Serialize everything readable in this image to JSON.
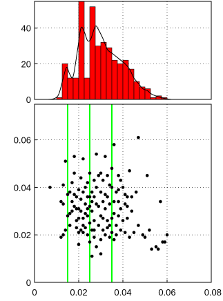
{
  "chart_data": [
    {
      "type": "bar",
      "panel": "histogram",
      "bar_color": "#ff0000",
      "bar_edge_color": "#000000",
      "curve_color": "#000000",
      "grid": true,
      "grid_style": "dotted",
      "xlim": [
        0,
        0.08
      ],
      "ylim": [
        0,
        55
      ],
      "yticks": [
        0,
        20,
        40
      ],
      "ytick_labels": [
        "0",
        "20",
        "40"
      ],
      "bins": [
        {
          "x0": 0.01,
          "x1": 0.0125,
          "count": 1
        },
        {
          "x0": 0.0125,
          "x1": 0.015,
          "count": 20
        },
        {
          "x0": 0.015,
          "x1": 0.0175,
          "count": 12
        },
        {
          "x0": 0.0175,
          "x1": 0.02,
          "count": 12
        },
        {
          "x0": 0.02,
          "x1": 0.0225,
          "count": 56
        },
        {
          "x0": 0.0225,
          "x1": 0.025,
          "count": 12
        },
        {
          "x0": 0.025,
          "x1": 0.0275,
          "count": 52
        },
        {
          "x0": 0.0275,
          "x1": 0.03,
          "count": 30
        },
        {
          "x0": 0.03,
          "x1": 0.0325,
          "count": 32
        },
        {
          "x0": 0.0325,
          "x1": 0.035,
          "count": 29
        },
        {
          "x0": 0.035,
          "x1": 0.0375,
          "count": 22
        },
        {
          "x0": 0.0375,
          "x1": 0.04,
          "count": 20
        },
        {
          "x0": 0.04,
          "x1": 0.0425,
          "count": 22
        },
        {
          "x0": 0.0425,
          "x1": 0.045,
          "count": 17
        },
        {
          "x0": 0.045,
          "x1": 0.0475,
          "count": 10
        },
        {
          "x0": 0.0475,
          "x1": 0.05,
          "count": 7
        },
        {
          "x0": 0.05,
          "x1": 0.0525,
          "count": 6
        },
        {
          "x0": 0.0525,
          "x1": 0.055,
          "count": 1
        },
        {
          "x0": 0.055,
          "x1": 0.0575,
          "count": 2
        },
        {
          "x0": 0.0575,
          "x1": 0.06,
          "count": 1
        }
      ],
      "density_curve": [
        [
          0.006,
          0
        ],
        [
          0.009,
          0.5
        ],
        [
          0.011,
          3
        ],
        [
          0.013,
          12
        ],
        [
          0.0145,
          18
        ],
        [
          0.016,
          14
        ],
        [
          0.0175,
          13
        ],
        [
          0.0195,
          28
        ],
        [
          0.021,
          40
        ],
        [
          0.0225,
          38
        ],
        [
          0.024,
          33
        ],
        [
          0.0255,
          34
        ],
        [
          0.0275,
          41
        ],
        [
          0.029,
          39
        ],
        [
          0.031,
          34
        ],
        [
          0.033,
          28
        ],
        [
          0.035,
          26
        ],
        [
          0.037,
          24
        ],
        [
          0.039,
          22
        ],
        [
          0.041,
          20
        ],
        [
          0.043,
          17
        ],
        [
          0.045,
          12
        ],
        [
          0.047,
          9
        ],
        [
          0.049,
          6
        ],
        [
          0.051,
          5
        ],
        [
          0.053,
          3
        ],
        [
          0.056,
          1.5
        ],
        [
          0.059,
          0.5
        ],
        [
          0.062,
          0
        ]
      ]
    },
    {
      "type": "scatter",
      "panel": "scatter",
      "point_color": "#000000",
      "vline_color": "#00ff00",
      "grid": true,
      "grid_style": "dotted",
      "xlim": [
        0,
        0.08
      ],
      "ylim": [
        0,
        0.075
      ],
      "xticks": [
        0,
        0.02,
        0.04,
        0.06,
        0.08
      ],
      "xtick_labels": [
        "0",
        "0.02",
        "0.04",
        "0.06",
        "0.08"
      ],
      "yticks": [
        0,
        0.02,
        0.04,
        0.06
      ],
      "ytick_labels": [
        "0",
        "0.02",
        "0.04",
        "0.06"
      ],
      "vlines": [
        0.015,
        0.025,
        0.035
      ],
      "points": [
        [
          0.007,
          0.04
        ],
        [
          0.012,
          0.034
        ],
        [
          0.013,
          0.033
        ],
        [
          0.013,
          0.041
        ],
        [
          0.012,
          0.019
        ],
        [
          0.013,
          0.02
        ],
        [
          0.014,
          0.022
        ],
        [
          0.014,
          0.051
        ],
        [
          0.015,
          0.028
        ],
        [
          0.015,
          0.037
        ],
        [
          0.016,
          0.038
        ],
        [
          0.016,
          0.029
        ],
        [
          0.016,
          0.024
        ],
        [
          0.017,
          0.034
        ],
        [
          0.017,
          0.042
        ],
        [
          0.018,
          0.046
        ],
        [
          0.018,
          0.053
        ],
        [
          0.018,
          0.032
        ],
        [
          0.019,
          0.031
        ],
        [
          0.019,
          0.036
        ],
        [
          0.019,
          0.026
        ],
        [
          0.02,
          0.039
        ],
        [
          0.02,
          0.031
        ],
        [
          0.02,
          0.021
        ],
        [
          0.02,
          0.016
        ],
        [
          0.021,
          0.044
        ],
        [
          0.021,
          0.03
        ],
        [
          0.021,
          0.022
        ],
        [
          0.022,
          0.052
        ],
        [
          0.022,
          0.027
        ],
        [
          0.022,
          0.024
        ],
        [
          0.022,
          0.021
        ],
        [
          0.023,
          0.033
        ],
        [
          0.023,
          0.04
        ],
        [
          0.023,
          0.023
        ],
        [
          0.024,
          0.036
        ],
        [
          0.024,
          0.02
        ],
        [
          0.024,
          0.042
        ],
        [
          0.024,
          0.031
        ],
        [
          0.025,
          0.017
        ],
        [
          0.025,
          0.036
        ],
        [
          0.025,
          0.025
        ],
        [
          0.025,
          0.046
        ],
        [
          0.026,
          0.038
        ],
        [
          0.026,
          0.022
        ],
        [
          0.026,
          0.011
        ],
        [
          0.026,
          0.03
        ],
        [
          0.027,
          0.043
        ],
        [
          0.027,
          0.026
        ],
        [
          0.027,
          0.019
        ],
        [
          0.027,
          0.036
        ],
        [
          0.028,
          0.04
        ],
        [
          0.028,
          0.015
        ],
        [
          0.028,
          0.054
        ],
        [
          0.029,
          0.032
        ],
        [
          0.029,
          0.024
        ],
        [
          0.029,
          0.045
        ],
        [
          0.03,
          0.046
        ],
        [
          0.03,
          0.028
        ],
        [
          0.03,
          0.012
        ],
        [
          0.03,
          0.038
        ],
        [
          0.031,
          0.022
        ],
        [
          0.031,
          0.034
        ],
        [
          0.031,
          0.043
        ],
        [
          0.032,
          0.031
        ],
        [
          0.032,
          0.02
        ],
        [
          0.032,
          0.053
        ],
        [
          0.033,
          0.026
        ],
        [
          0.033,
          0.045
        ],
        [
          0.033,
          0.036
        ],
        [
          0.034,
          0.024
        ],
        [
          0.034,
          0.041
        ],
        [
          0.034,
          0.019
        ],
        [
          0.034,
          0.033
        ],
        [
          0.035,
          0.027
        ],
        [
          0.035,
          0.021
        ],
        [
          0.035,
          0.048
        ],
        [
          0.036,
          0.058
        ],
        [
          0.036,
          0.034
        ],
        [
          0.036,
          0.029
        ],
        [
          0.037,
          0.038
        ],
        [
          0.037,
          0.024
        ],
        [
          0.037,
          0.02
        ],
        [
          0.038,
          0.039
        ],
        [
          0.038,
          0.034
        ],
        [
          0.038,
          0.028
        ],
        [
          0.039,
          0.031
        ],
        [
          0.039,
          0.022
        ],
        [
          0.04,
          0.026
        ],
        [
          0.04,
          0.04
        ],
        [
          0.041,
          0.033
        ],
        [
          0.041,
          0.037
        ],
        [
          0.041,
          0.021
        ],
        [
          0.042,
          0.027
        ],
        [
          0.042,
          0.032
        ],
        [
          0.043,
          0.047
        ],
        [
          0.043,
          0.019
        ],
        [
          0.044,
          0.036
        ],
        [
          0.044,
          0.03
        ],
        [
          0.045,
          0.021
        ],
        [
          0.046,
          0.038
        ],
        [
          0.047,
          0.061
        ],
        [
          0.047,
          0.024
        ],
        [
          0.049,
          0.02
        ],
        [
          0.05,
          0.019
        ],
        [
          0.051,
          0.045
        ],
        [
          0.052,
          0.022
        ],
        [
          0.053,
          0.014
        ],
        [
          0.055,
          0.015
        ],
        [
          0.056,
          0.014
        ],
        [
          0.057,
          0.034
        ],
        [
          0.058,
          0.017
        ],
        [
          0.059,
          0.017
        ],
        [
          0.06,
          0.02
        ],
        [
          0.038,
          0.045
        ],
        [
          0.032,
          0.037
        ],
        [
          0.028,
          0.033
        ],
        [
          0.024,
          0.028
        ],
        [
          0.021,
          0.035
        ],
        [
          0.019,
          0.023
        ],
        [
          0.023,
          0.029
        ],
        [
          0.027,
          0.022
        ],
        [
          0.031,
          0.027
        ],
        [
          0.035,
          0.04
        ],
        [
          0.039,
          0.043
        ],
        [
          0.026,
          0.034
        ],
        [
          0.02,
          0.027
        ],
        [
          0.017,
          0.03
        ],
        [
          0.033,
          0.023
        ],
        [
          0.036,
          0.018
        ],
        [
          0.03,
          0.018
        ],
        [
          0.025,
          0.032
        ],
        [
          0.022,
          0.038
        ],
        [
          0.018,
          0.037
        ],
        [
          0.042,
          0.036
        ]
      ]
    }
  ]
}
